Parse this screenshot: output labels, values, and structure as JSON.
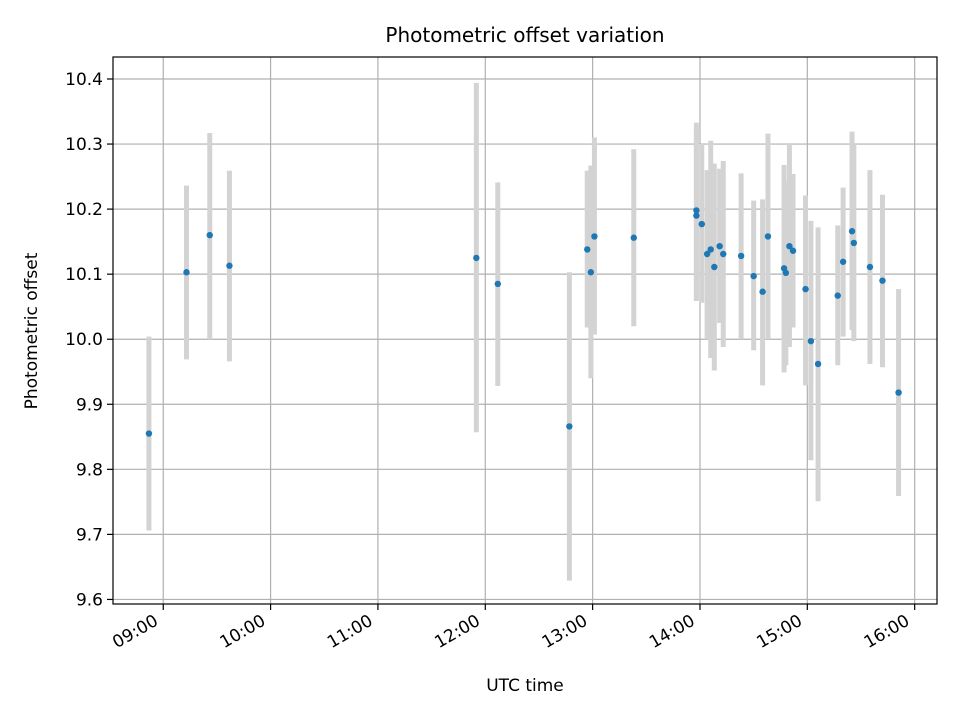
{
  "chart_data": {
    "type": "scatter",
    "title": "Photometric offset variation",
    "xlabel": "UTC time",
    "ylabel": "Photometric offset",
    "x_tick_labels": [
      "09:00",
      "10:00",
      "11:00",
      "12:00",
      "13:00",
      "14:00",
      "15:00",
      "16:00"
    ],
    "x_ticks_hours": [
      9,
      10,
      11,
      12,
      13,
      14,
      15,
      16
    ],
    "xlim_hours": [
      8.532,
      16.208
    ],
    "y_tick_labels": [
      "9.6",
      "9.7",
      "9.8",
      "9.9",
      "10.0",
      "10.1",
      "10.2",
      "10.3",
      "10.4"
    ],
    "y_ticks": [
      9.6,
      9.7,
      9.8,
      9.9,
      10.0,
      10.1,
      10.2,
      10.3,
      10.4
    ],
    "ylim": [
      9.593,
      10.4338
    ],
    "grid": true,
    "colors": {
      "point": "#1f77b4",
      "errorbar": "#d3d3d3",
      "grid": "#b0b0b0"
    },
    "series": [
      {
        "points": [
          {
            "x": "08:52",
            "y": 9.855,
            "ylo": 9.706,
            "yhi": 10.004
          },
          {
            "x": "09:13",
            "y": 10.103,
            "ylo": 9.969,
            "yhi": 10.236
          },
          {
            "x": "09:26",
            "y": 10.16,
            "ylo": 10.0,
            "yhi": 10.317
          },
          {
            "x": "09:37",
            "y": 10.113,
            "ylo": 9.966,
            "yhi": 10.259
          },
          {
            "x": "11:55",
            "y": 10.125,
            "ylo": 9.857,
            "yhi": 10.394
          },
          {
            "x": "12:07",
            "y": 10.085,
            "ylo": 9.928,
            "yhi": 10.241
          },
          {
            "x": "12:47",
            "y": 9.866,
            "ylo": 9.629,
            "yhi": 10.103
          },
          {
            "x": "12:57",
            "y": 10.138,
            "ylo": 10.018,
            "yhi": 10.259
          },
          {
            "x": "12:59",
            "y": 10.103,
            "ylo": 9.94,
            "yhi": 10.267
          },
          {
            "x": "13:01",
            "y": 10.158,
            "ylo": 10.007,
            "yhi": 10.31
          },
          {
            "x": "13:23",
            "y": 10.156,
            "ylo": 10.02,
            "yhi": 10.292
          },
          {
            "x": "13:58",
            "y": 10.198,
            "ylo": 10.059,
            "yhi": 10.333
          },
          {
            "x": "13:58",
            "y": 10.19,
            "ylo": 10.059,
            "yhi": 10.323
          },
          {
            "x": "14:01",
            "y": 10.177,
            "ylo": 10.056,
            "yhi": 10.3
          },
          {
            "x": "14:04",
            "y": 10.131,
            "ylo": 10.0,
            "yhi": 10.26
          },
          {
            "x": "14:06",
            "y": 10.138,
            "ylo": 9.971,
            "yhi": 10.305
          },
          {
            "x": "14:08",
            "y": 10.111,
            "ylo": 9.952,
            "yhi": 10.27
          },
          {
            "x": "14:11",
            "y": 10.143,
            "ylo": 10.025,
            "yhi": 10.262
          },
          {
            "x": "14:13",
            "y": 10.131,
            "ylo": 9.988,
            "yhi": 10.274
          },
          {
            "x": "14:23",
            "y": 10.128,
            "ylo": 10.0,
            "yhi": 10.255
          },
          {
            "x": "14:30",
            "y": 10.097,
            "ylo": 9.983,
            "yhi": 10.213
          },
          {
            "x": "14:35",
            "y": 10.073,
            "ylo": 9.929,
            "yhi": 10.215
          },
          {
            "x": "14:38",
            "y": 10.158,
            "ylo": 10.0,
            "yhi": 10.316
          },
          {
            "x": "14:47",
            "y": 10.109,
            "ylo": 9.949,
            "yhi": 10.268
          },
          {
            "x": "14:48",
            "y": 10.102,
            "ylo": 9.96,
            "yhi": 10.243
          },
          {
            "x": "14:50",
            "y": 10.143,
            "ylo": 9.988,
            "yhi": 10.3
          },
          {
            "x": "14:52",
            "y": 10.136,
            "ylo": 10.018,
            "yhi": 10.254
          },
          {
            "x": "14:59",
            "y": 10.077,
            "ylo": 9.929,
            "yhi": 10.221
          },
          {
            "x": "15:02",
            "y": 9.997,
            "ylo": 9.814,
            "yhi": 10.182
          },
          {
            "x": "15:06",
            "y": 9.962,
            "ylo": 9.751,
            "yhi": 10.172
          },
          {
            "x": "15:17",
            "y": 10.067,
            "ylo": 9.96,
            "yhi": 10.175
          },
          {
            "x": "15:20",
            "y": 10.119,
            "ylo": 10.004,
            "yhi": 10.233
          },
          {
            "x": "15:25",
            "y": 10.166,
            "ylo": 10.014,
            "yhi": 10.319
          },
          {
            "x": "15:26",
            "y": 10.148,
            "ylo": 9.997,
            "yhi": 10.3
          },
          {
            "x": "15:35",
            "y": 10.111,
            "ylo": 9.962,
            "yhi": 10.26
          },
          {
            "x": "15:42",
            "y": 10.09,
            "ylo": 9.957,
            "yhi": 10.222
          },
          {
            "x": "15:51",
            "y": 9.918,
            "ylo": 9.759,
            "yhi": 10.077
          }
        ]
      }
    ]
  }
}
